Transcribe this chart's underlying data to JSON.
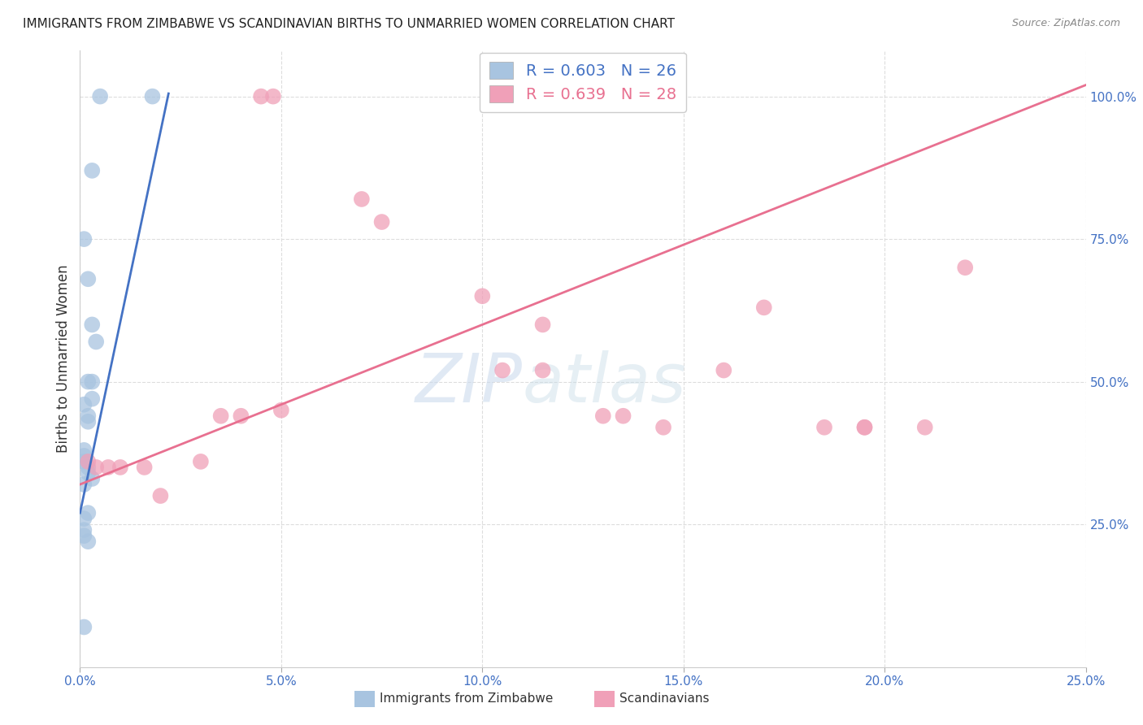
{
  "title": "IMMIGRANTS FROM ZIMBABWE VS SCANDINAVIAN BIRTHS TO UNMARRIED WOMEN CORRELATION CHART",
  "source": "Source: ZipAtlas.com",
  "ylabel": "Births to Unmarried Women",
  "xlim": [
    0.0,
    0.25
  ],
  "ylim": [
    0.0,
    1.08
  ],
  "ytick_labels": [
    "25.0%",
    "50.0%",
    "75.0%",
    "100.0%"
  ],
  "ytick_values": [
    0.25,
    0.5,
    0.75,
    1.0
  ],
  "xtick_labels": [
    "0.0%",
    "5.0%",
    "10.0%",
    "15.0%",
    "20.0%",
    "25.0%"
  ],
  "xtick_values": [
    0.0,
    0.05,
    0.1,
    0.15,
    0.2,
    0.25
  ],
  "blue_scatter_x": [
    0.005,
    0.003,
    0.018,
    0.001,
    0.002,
    0.003,
    0.004,
    0.002,
    0.003,
    0.003,
    0.001,
    0.002,
    0.002,
    0.001,
    0.001,
    0.001,
    0.002,
    0.002,
    0.003,
    0.001,
    0.002,
    0.001,
    0.001,
    0.001,
    0.002,
    0.001
  ],
  "blue_scatter_y": [
    1.0,
    0.87,
    1.0,
    0.75,
    0.68,
    0.6,
    0.57,
    0.5,
    0.5,
    0.47,
    0.46,
    0.44,
    0.43,
    0.38,
    0.37,
    0.36,
    0.35,
    0.34,
    0.33,
    0.32,
    0.27,
    0.26,
    0.24,
    0.23,
    0.22,
    0.07
  ],
  "pink_scatter_x": [
    0.045,
    0.048,
    0.07,
    0.075,
    0.1,
    0.105,
    0.115,
    0.115,
    0.13,
    0.135,
    0.145,
    0.16,
    0.17,
    0.185,
    0.195,
    0.195,
    0.21,
    0.22,
    0.002,
    0.004,
    0.007,
    0.01,
    0.016,
    0.02,
    0.03,
    0.035,
    0.04,
    0.05
  ],
  "pink_scatter_y": [
    1.0,
    1.0,
    0.82,
    0.78,
    0.65,
    0.52,
    0.52,
    0.6,
    0.44,
    0.44,
    0.42,
    0.52,
    0.63,
    0.42,
    0.42,
    0.42,
    0.42,
    0.7,
    0.36,
    0.35,
    0.35,
    0.35,
    0.35,
    0.3,
    0.36,
    0.44,
    0.44,
    0.45
  ],
  "blue_line_x": [
    0.0,
    0.022
  ],
  "blue_line_y": [
    0.27,
    1.005
  ],
  "pink_line_x": [
    0.0,
    0.25
  ],
  "pink_line_y": [
    0.32,
    1.02
  ],
  "blue_color": "#a8c4e0",
  "pink_color": "#f0a0b8",
  "blue_line_color": "#4472c4",
  "pink_line_color": "#e87090",
  "blue_R": "R = 0.603",
  "blue_N": "N = 26",
  "pink_R": "R = 0.639",
  "pink_N": "N = 28",
  "legend_label_blue": "Immigrants from Zimbabwe",
  "legend_label_pink": "Scandinavians",
  "watermark_zip": "ZIP",
  "watermark_atlas": "atlas",
  "background_color": "#ffffff",
  "title_color": "#222222",
  "axis_label_color": "#4472c4",
  "ylabel_color": "#333333",
  "grid_color": "#dddddd",
  "watermark_zip_color": "#c8d8ec",
  "watermark_atlas_color": "#c8dce8"
}
